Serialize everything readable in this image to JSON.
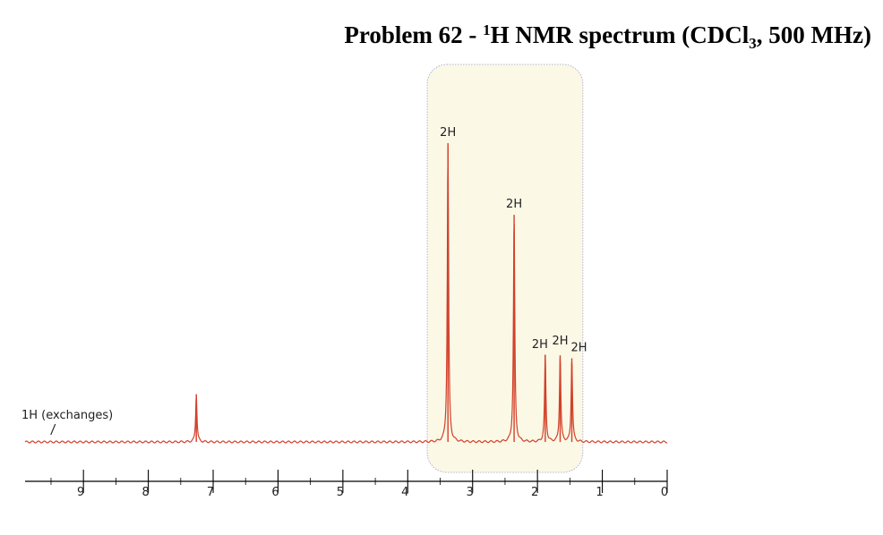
{
  "title": {
    "prefix": "Problem 62 - ",
    "sup": "1",
    "mid": "H NMR spectrum (CDCl",
    "sub": "3",
    "suffix": ", 500 MHz)"
  },
  "chart_data": {
    "type": "line",
    "title": "Problem 62 - 1H NMR spectrum (CDCl3, 500 MHz)",
    "xlabel": "",
    "ylabel": "",
    "xlim": [
      9.9,
      0
    ],
    "x_reversed": true,
    "ticks": [
      9,
      8,
      7,
      6,
      5,
      4,
      3,
      2,
      1,
      0
    ],
    "tick_labels": [
      "9",
      "8",
      "7",
      "6",
      "5",
      "4",
      "3",
      "2",
      "1",
      "0"
    ],
    "highlight_region": {
      "x_from": 3.7,
      "x_to": 1.3
    },
    "peaks": [
      {
        "ppm": 7.26,
        "height": 0.16,
        "label": ""
      },
      {
        "ppm": 3.38,
        "height": 1.0,
        "label": "2H"
      },
      {
        "ppm": 2.36,
        "height": 0.76,
        "label": "2H"
      },
      {
        "ppm": 1.88,
        "height": 0.29,
        "label": "2H"
      },
      {
        "ppm": 1.65,
        "height": 0.29,
        "label": "2H"
      },
      {
        "ppm": 1.47,
        "height": 0.28,
        "label": "2H"
      }
    ],
    "annotations": [
      {
        "text": "1H (exchanges)",
        "ppm": 9.6
      }
    ]
  },
  "colors": {
    "trace": "#d2402a",
    "region_fill": "#fbf8e6",
    "region_border": "#9aa0cc",
    "axis": "#000000"
  }
}
